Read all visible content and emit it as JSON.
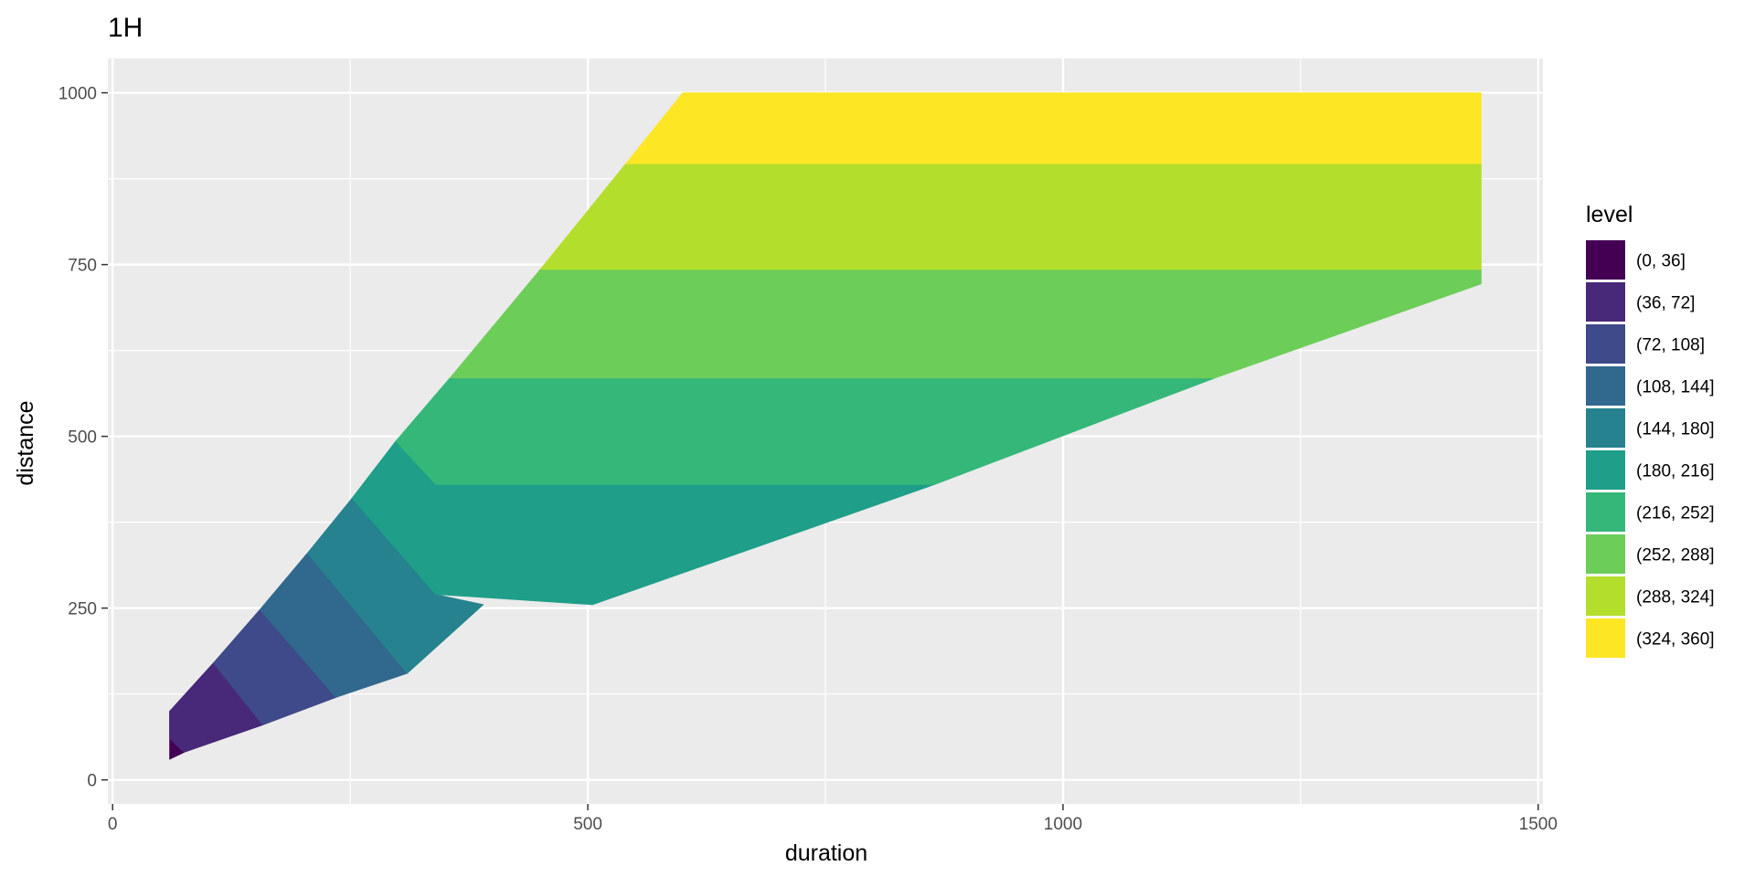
{
  "chart_data": {
    "type": "filled-contour",
    "title": "1H",
    "xlabel": "duration",
    "ylabel": "distance",
    "xlim": [
      -5,
      1505
    ],
    "ylim": [
      -35,
      1050
    ],
    "x_ticks": [
      0,
      500,
      1000,
      1500
    ],
    "y_ticks": [
      0,
      250,
      500,
      750,
      1000
    ],
    "grid": true,
    "legend_position": "right",
    "legend": {
      "title": "level",
      "entries": [
        {
          "label": "(0, 36]",
          "color": "#440154"
        },
        {
          "label": "(36, 72]",
          "color": "#482878"
        },
        {
          "label": "(72, 108]",
          "color": "#3E4A89"
        },
        {
          "label": "(108, 144]",
          "color": "#31688E"
        },
        {
          "label": "(144, 180]",
          "color": "#26828E"
        },
        {
          "label": "(180, 216]",
          "color": "#1F9E89"
        },
        {
          "label": "(216, 252]",
          "color": "#35B779"
        },
        {
          "label": "(252, 288]",
          "color": "#6DCD59"
        },
        {
          "label": "(288, 324]",
          "color": "#B4DE2C"
        },
        {
          "label": "(324, 360]",
          "color": "#FDE725"
        }
      ]
    },
    "bands": [
      {
        "level": "(0, 36]",
        "color": "#440154",
        "polygon": [
          [
            60,
            100
          ],
          [
            60,
            30
          ],
          [
            75,
            40
          ],
          [
            60,
            60
          ]
        ]
      },
      {
        "level": "(36, 72]",
        "color": "#482878",
        "polygon": [
          [
            60,
            100
          ],
          [
            106,
            170
          ],
          [
            158,
            80
          ],
          [
            75,
            40
          ],
          [
            60,
            60
          ]
        ]
      },
      {
        "level": "(72, 108]",
        "color": "#3E4A89",
        "polygon": [
          [
            106,
            170
          ],
          [
            155,
            248
          ],
          [
            235,
            120
          ],
          [
            158,
            80
          ]
        ]
      },
      {
        "level": "(108, 144]",
        "color": "#31688E",
        "polygon": [
          [
            155,
            248
          ],
          [
            205,
            330
          ],
          [
            310,
            155
          ],
          [
            235,
            120
          ]
        ]
      },
      {
        "level": "(144, 180]",
        "color": "#26828E",
        "polygon": [
          [
            205,
            330
          ],
          [
            252,
            410
          ],
          [
            340,
            270
          ],
          [
            390,
            255
          ],
          [
            310,
            155
          ]
        ]
      },
      {
        "level": "(180, 216]",
        "color": "#1F9E89",
        "polygon": [
          [
            252,
            410
          ],
          [
            298,
            493
          ],
          [
            340,
            430
          ],
          [
            865,
            430
          ],
          [
            505,
            255
          ],
          [
            340,
            270
          ]
        ]
      },
      {
        "level": "(216, 252]",
        "color": "#35B779",
        "polygon": [
          [
            298,
            493
          ],
          [
            355,
            585
          ],
          [
            1160,
            585
          ],
          [
            865,
            430
          ],
          [
            340,
            430
          ]
        ]
      },
      {
        "level": "(252, 288]",
        "color": "#6DCD59",
        "polygon": [
          [
            355,
            585
          ],
          [
            450,
            743
          ],
          [
            1440,
            743
          ],
          [
            1440,
            722
          ],
          [
            1160,
            585
          ]
        ]
      },
      {
        "level": "(288, 324]",
        "color": "#B4DE2C",
        "polygon": [
          [
            450,
            743
          ],
          [
            540,
            897
          ],
          [
            1440,
            897
          ],
          [
            1440,
            743
          ]
        ]
      },
      {
        "level": "(324, 360]",
        "color": "#FDE725",
        "polygon": [
          [
            540,
            897
          ],
          [
            600,
            1000
          ],
          [
            1440,
            1000
          ],
          [
            1440,
            897
          ]
        ]
      }
    ]
  }
}
